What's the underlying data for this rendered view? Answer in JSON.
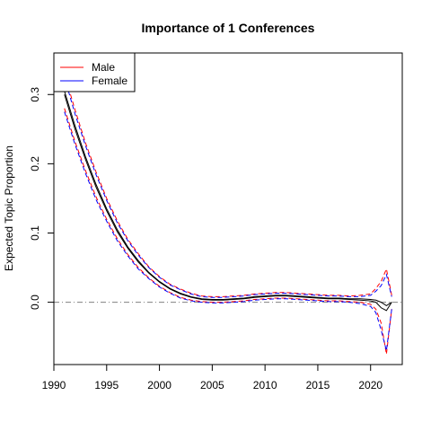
{
  "chart_data": {
    "type": "line",
    "title": "Importance of 1 Conferences",
    "xlabel": "",
    "ylabel": "Expected Topic Proportion",
    "xlim": [
      1990,
      2023
    ],
    "ylim": [
      -0.09,
      0.36
    ],
    "xticks": [
      1990,
      1995,
      2000,
      2005,
      2010,
      2015,
      2020
    ],
    "yticks": [
      0.0,
      0.1,
      0.2,
      0.3
    ],
    "ytick_labels": [
      "0.0",
      "0.1",
      "0.2",
      "0.3"
    ],
    "reference_line": 0,
    "grid": false,
    "legend": {
      "position": "top-left",
      "entries": [
        "Male",
        "Female"
      ]
    },
    "colors": {
      "Male": "#ff0000",
      "Female": "#0000ff",
      "reference": "#808080"
    },
    "series": [
      {
        "name": "Male",
        "x": [
          1991,
          1992,
          1993,
          1994,
          1995,
          1996,
          1997,
          1998,
          1999,
          2000,
          2001,
          2002,
          2003,
          2004,
          2005,
          2006,
          2007,
          2008,
          2009,
          2010,
          2011,
          2012,
          2013,
          2014,
          2015,
          2016,
          2017,
          2018,
          2019,
          2020,
          2020.5,
          2021,
          2021.5,
          2022
        ],
        "mean": [
          0.305,
          0.255,
          0.21,
          0.17,
          0.135,
          0.105,
          0.08,
          0.06,
          0.043,
          0.03,
          0.02,
          0.013,
          0.008,
          0.005,
          0.004,
          0.004,
          0.005,
          0.006,
          0.008,
          0.009,
          0.01,
          0.01,
          0.009,
          0.008,
          0.007,
          0.006,
          0.006,
          0.005,
          0.005,
          0.004,
          0.003,
          0.0,
          -0.005,
          0.0
        ],
        "lower": [
          0.28,
          0.232,
          0.19,
          0.152,
          0.12,
          0.092,
          0.069,
          0.05,
          0.035,
          0.023,
          0.014,
          0.007,
          0.003,
          0.001,
          0.0,
          0.0,
          0.001,
          0.002,
          0.004,
          0.005,
          0.006,
          0.006,
          0.005,
          0.004,
          0.003,
          0.002,
          0.002,
          0.001,
          0.0,
          -0.003,
          -0.01,
          -0.03,
          -0.075,
          -0.01
        ],
        "upper": [
          0.33,
          0.278,
          0.23,
          0.188,
          0.15,
          0.118,
          0.091,
          0.07,
          0.051,
          0.037,
          0.026,
          0.019,
          0.013,
          0.009,
          0.008,
          0.008,
          0.009,
          0.01,
          0.012,
          0.013,
          0.014,
          0.014,
          0.013,
          0.012,
          0.011,
          0.01,
          0.01,
          0.009,
          0.01,
          0.012,
          0.02,
          0.03,
          0.048,
          0.01
        ]
      },
      {
        "name": "Female",
        "x": [
          1991,
          1992,
          1993,
          1994,
          1995,
          1996,
          1997,
          1998,
          1999,
          2000,
          2001,
          2002,
          2003,
          2004,
          2005,
          2006,
          2007,
          2008,
          2009,
          2010,
          2011,
          2012,
          2013,
          2014,
          2015,
          2016,
          2017,
          2018,
          2019,
          2020,
          2020.5,
          2021,
          2021.5,
          2022
        ],
        "mean": [
          0.3,
          0.25,
          0.206,
          0.166,
          0.132,
          0.102,
          0.078,
          0.058,
          0.042,
          0.029,
          0.019,
          0.012,
          0.007,
          0.004,
          0.003,
          0.003,
          0.004,
          0.005,
          0.007,
          0.008,
          0.009,
          0.009,
          0.008,
          0.007,
          0.006,
          0.005,
          0.005,
          0.004,
          0.003,
          0.002,
          0.0,
          -0.008,
          -0.012,
          0.0
        ],
        "lower": [
          0.275,
          0.228,
          0.186,
          0.148,
          0.117,
          0.089,
          0.067,
          0.048,
          0.034,
          0.022,
          0.013,
          0.006,
          0.002,
          0.0,
          -0.001,
          -0.001,
          0.0,
          0.001,
          0.003,
          0.004,
          0.005,
          0.005,
          0.004,
          0.003,
          0.002,
          0.001,
          0.001,
          0.0,
          -0.002,
          -0.006,
          -0.015,
          -0.04,
          -0.07,
          -0.01
        ],
        "upper": [
          0.325,
          0.272,
          0.226,
          0.184,
          0.147,
          0.115,
          0.089,
          0.068,
          0.05,
          0.036,
          0.025,
          0.018,
          0.012,
          0.008,
          0.007,
          0.007,
          0.008,
          0.009,
          0.011,
          0.012,
          0.013,
          0.013,
          0.012,
          0.011,
          0.01,
          0.009,
          0.009,
          0.008,
          0.008,
          0.01,
          0.016,
          0.024,
          0.04,
          0.008
        ]
      }
    ]
  }
}
